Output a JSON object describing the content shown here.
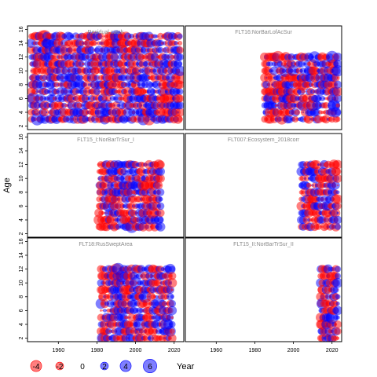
{
  "chart_data": {
    "type": "scatter",
    "layout": "3 rows x 2 columns of panels sharing x and y axes",
    "ylabel": "Age",
    "xlabel": "Year",
    "xlim": [
      1944,
      2025
    ],
    "ylim": [
      1.5,
      16.5
    ],
    "x_ticks": [
      1960,
      1980,
      2000,
      2020
    ],
    "y_ticks": [
      2,
      4,
      6,
      8,
      10,
      12,
      14,
      16
    ],
    "colors": {
      "negative": "#ff0000",
      "positive": "#0000ff",
      "fill_alpha": 0.5
    },
    "size_legend": {
      "values": [
        -4,
        -2,
        0,
        2,
        4,
        6
      ],
      "labels": [
        "-4",
        "-2",
        "0",
        "2",
        "4",
        "6"
      ]
    },
    "panels": [
      {
        "title": "Residual catch",
        "x": [
          1946,
          2023
        ],
        "ages": [
          3,
          15
        ],
        "seed": 11
      },
      {
        "title": "FLT16:NorBarLofAcSur",
        "x": [
          1985,
          2023
        ],
        "ages": [
          3,
          12
        ],
        "seed": 23
      },
      {
        "title": "FLT15_I:NorBarTrSur_I",
        "x": [
          1981,
          2013
        ],
        "ages": [
          3,
          12
        ],
        "seed": 37
      },
      {
        "title": "FLT007:Ecosystem_2018corr",
        "x": [
          2004,
          2023
        ],
        "ages": [
          3,
          12
        ],
        "seed": 41
      },
      {
        "title": "FLT18:RusSweptArea",
        "x": [
          1982,
          2019
        ],
        "ages": [
          2,
          12
        ],
        "seed": 53
      },
      {
        "title": "FLT15_II:NorBarTrSur_II",
        "x": [
          2014,
          2023
        ],
        "ages": [
          2,
          12
        ],
        "seed": 67
      }
    ]
  }
}
